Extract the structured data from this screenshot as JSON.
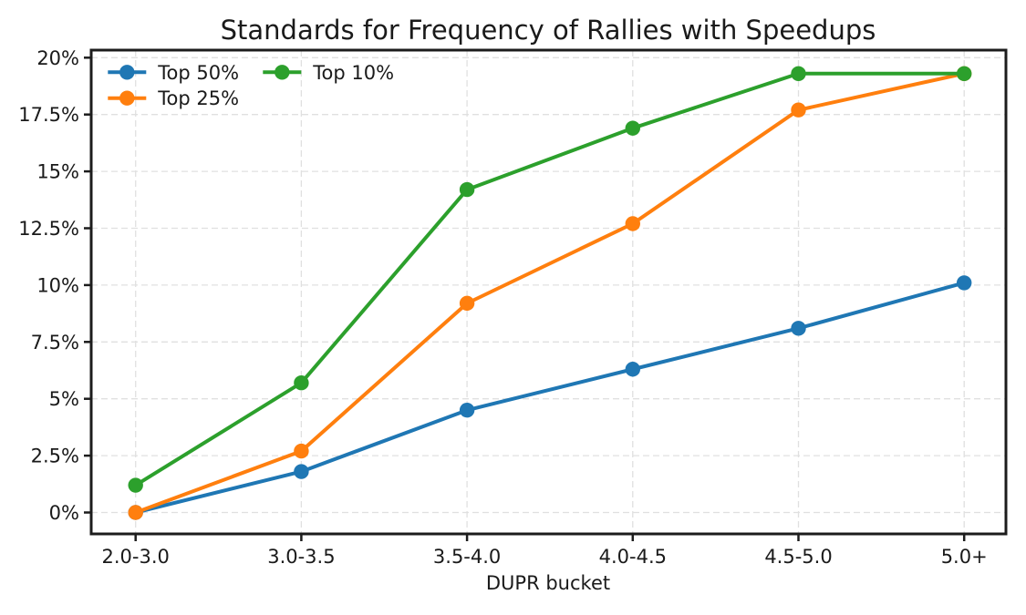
{
  "chart_data": {
    "type": "line",
    "title": "Standards for Frequency of Rallies with Speedups",
    "xlabel": "DUPR bucket",
    "ylabel": "",
    "categories": [
      "2.0-3.0",
      "3.0-3.5",
      "3.5-4.0",
      "4.0-4.5",
      "4.5-5.0",
      "5.0+"
    ],
    "series": [
      {
        "name": "Top 50%",
        "color": "#1f77b4",
        "values": [
          0.0,
          1.8,
          4.5,
          6.3,
          8.1,
          10.1
        ]
      },
      {
        "name": "Top 25%",
        "color": "#ff7f0e",
        "values": [
          0.0,
          2.7,
          9.2,
          12.7,
          17.7,
          19.3
        ]
      },
      {
        "name": "Top 10%",
        "color": "#2ca02c",
        "values": [
          1.2,
          5.7,
          14.2,
          16.9,
          19.3,
          19.3
        ]
      }
    ],
    "ylim": [
      0,
      20
    ],
    "yticks": [
      0,
      2.5,
      5,
      7.5,
      10,
      12.5,
      15,
      17.5,
      20
    ],
    "ytick_labels": [
      "0%",
      "2.5%",
      "5%",
      "7.5%",
      "10%",
      "12.5%",
      "15%",
      "17.5%",
      "20%"
    ],
    "grid": "dashed-both-axes",
    "legend_position": "upper-left",
    "legend_frame": false,
    "legend_ncols": 2,
    "colors": {
      "spine": "#1c1c1c",
      "gridline": "#e0e0e0",
      "text": "#1a1a1a",
      "background": "#ffffff"
    }
  }
}
